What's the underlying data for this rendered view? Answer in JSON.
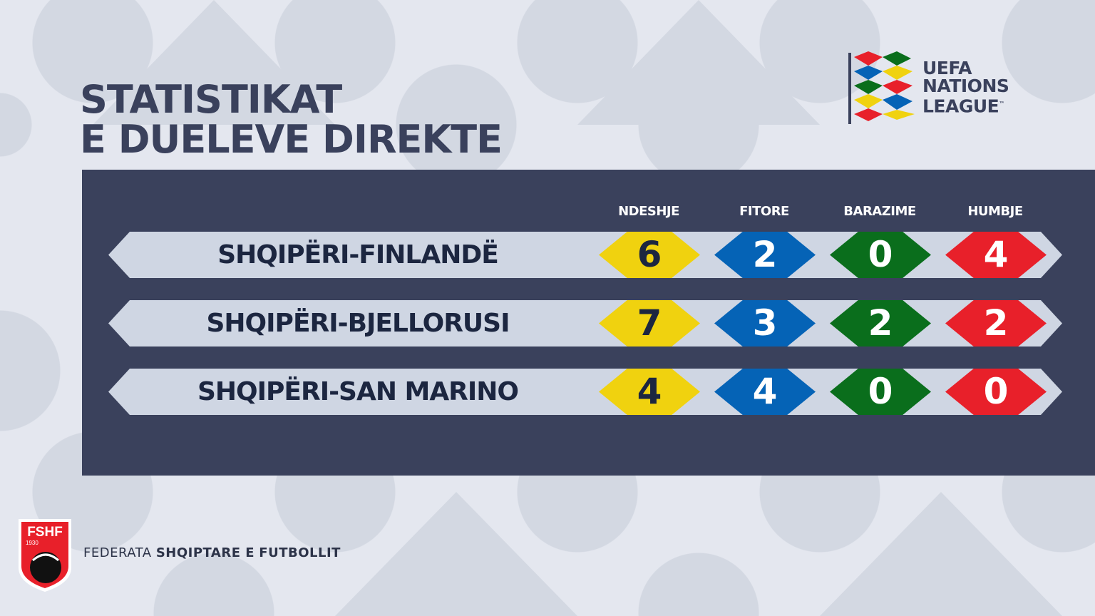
{
  "title": {
    "line1": "STATISTIKAT",
    "line2": "E DUELEVE DIREKTE"
  },
  "logo": {
    "line1": "UEFA",
    "line2": "NATIONS",
    "line3": "LEAGUE",
    "tm": "™"
  },
  "columns": [
    "NDESHJE",
    "FITORE",
    "BARAZIME",
    "HUMBJE"
  ],
  "column_colors": [
    "#f0d20f",
    "#0563b6",
    "#0a6e1c",
    "#e8202a"
  ],
  "rows": [
    {
      "match": "SHQIPËRI-FINLANDË",
      "values": [
        "6",
        "2",
        "0",
        "4"
      ]
    },
    {
      "match": "SHQIPËRI-BJELLORUSI",
      "values": [
        "7",
        "3",
        "2",
        "2"
      ]
    },
    {
      "match": "SHQIPËRI-SAN MARINO",
      "values": [
        "4",
        "4",
        "0",
        "0"
      ]
    }
  ],
  "footer": {
    "part1": "FEDERATA",
    "part2": "SHQIPTARE E",
    "part3": "FUTBOLLIT"
  },
  "badge": {
    "name": "FSHF",
    "year": "1930"
  }
}
